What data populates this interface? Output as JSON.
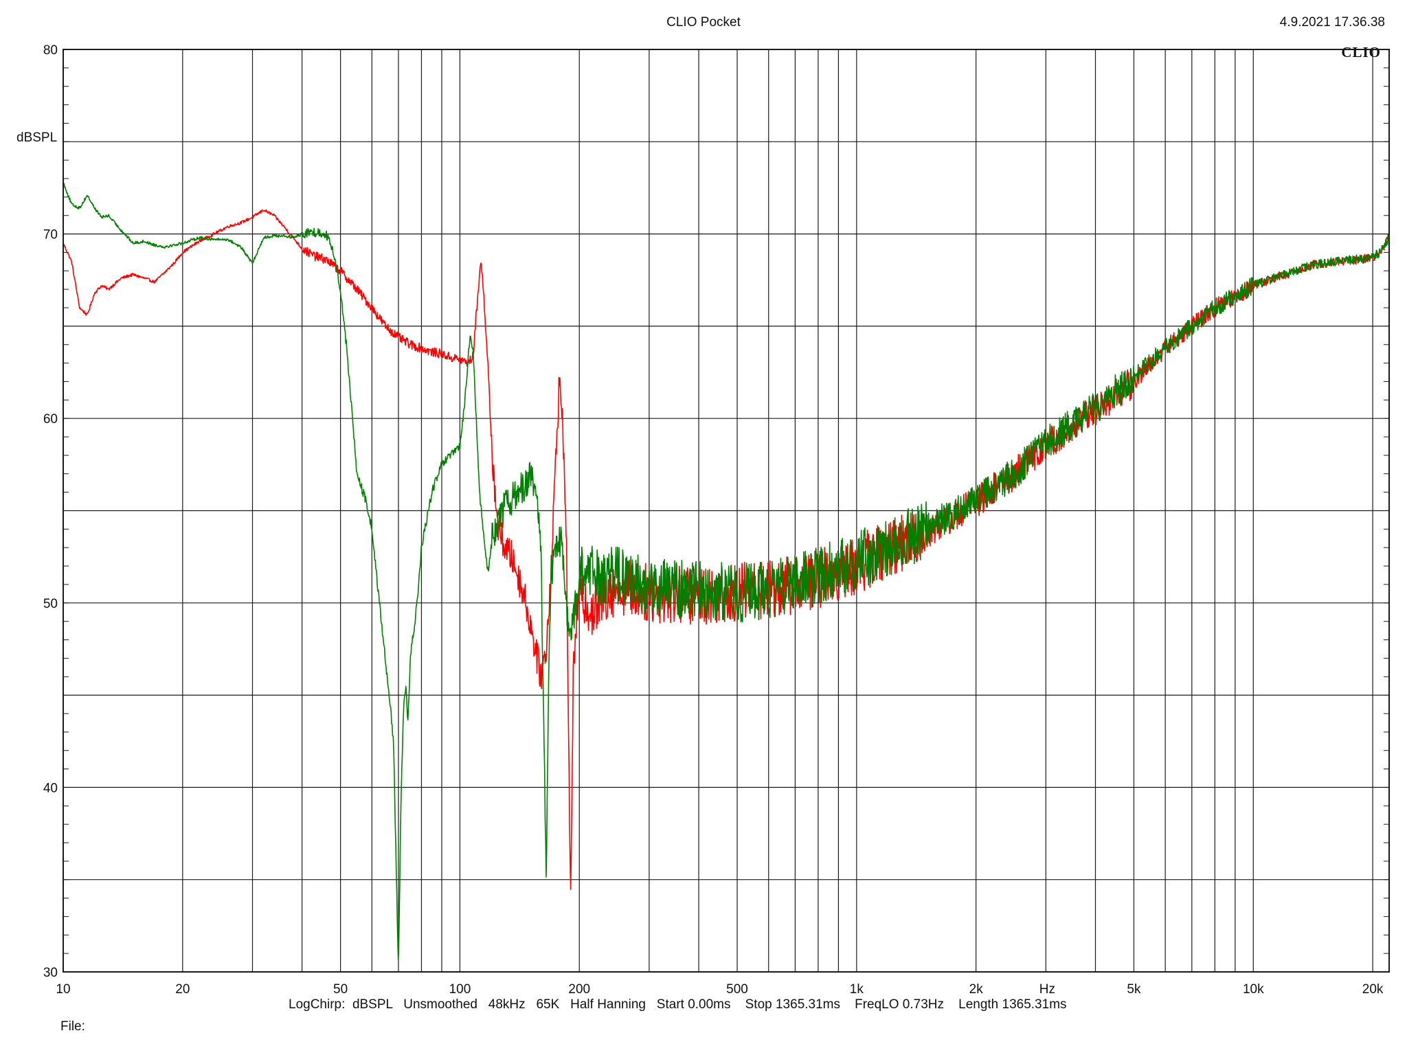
{
  "header": {
    "title": "CLIO Pocket",
    "timestamp": "4.9.2021 17.36.38",
    "brand": "CLIO"
  },
  "footer": {
    "settings": "LogChirp:  dBSPL   Unsmoothed   48kHz   65K   Half Hanning   Start 0.00ms    Stop 1365.31ms    FreqLO 0.73Hz    Length 1365.31ms",
    "file_label": "File:"
  },
  "chart_data": {
    "type": "line",
    "xscale": "log",
    "xlim": [
      10,
      22000
    ],
    "ylim": [
      30,
      80
    ],
    "xlabel": "Hz",
    "ylabel": "dBSPL",
    "grid": true,
    "x_tick_labels": [
      {
        "value": 10,
        "label": "10"
      },
      {
        "value": 20,
        "label": "20"
      },
      {
        "value": 50,
        "label": "50"
      },
      {
        "value": 100,
        "label": "100"
      },
      {
        "value": 200,
        "label": "200"
      },
      {
        "value": 500,
        "label": "500"
      },
      {
        "value": 1000,
        "label": "1k"
      },
      {
        "value": 2000,
        "label": "2k"
      },
      {
        "value": 5000,
        "label": "5k"
      },
      {
        "value": 10000,
        "label": "10k"
      },
      {
        "value": 20000,
        "label": "20k"
      }
    ],
    "y_tick_labels": [
      {
        "value": 80,
        "label": "80"
      },
      {
        "value": 70,
        "label": "70"
      },
      {
        "value": 60,
        "label": "60"
      },
      {
        "value": 50,
        "label": "50"
      },
      {
        "value": 40,
        "label": "40"
      },
      {
        "value": 30,
        "label": "30"
      }
    ],
    "colors": {
      "grid": "#1a1a1a",
      "red": "#ff0000",
      "green": "#008000"
    },
    "series": [
      {
        "color": "#ff0000",
        "x": [
          10,
          10.5,
          11,
          11.5,
          12,
          12.5,
          13,
          14,
          15,
          16,
          17,
          18,
          19,
          20,
          22,
          24,
          26,
          28,
          30,
          32,
          34,
          36,
          38,
          40,
          43,
          46,
          50,
          55,
          60,
          65,
          70,
          75,
          80,
          85,
          90,
          95,
          100,
          105,
          108,
          111,
          113,
          115,
          118,
          120,
          125,
          130,
          135,
          140,
          145,
          150,
          155,
          160,
          165,
          170,
          175,
          178,
          182,
          186,
          190,
          193,
          196,
          200,
          210,
          220,
          230,
          250,
          300,
          400,
          500,
          600,
          700,
          800,
          1000,
          1200,
          1500,
          2000,
          2500,
          3000,
          4000,
          5000,
          6000,
          7000,
          8000,
          10000,
          12000,
          14000,
          16000,
          18000,
          20000,
          21000,
          22000
        ],
        "y": [
          69.5,
          68.5,
          66.0,
          65.6,
          66.8,
          67.2,
          67.0,
          67.6,
          67.8,
          67.6,
          67.4,
          67.9,
          68.4,
          69.0,
          69.6,
          70.0,
          70.4,
          70.6,
          70.9,
          71.3,
          71.0,
          70.4,
          69.8,
          69.2,
          68.8,
          68.6,
          68.0,
          67.0,
          66.0,
          65.0,
          64.4,
          64.0,
          63.8,
          63.6,
          63.5,
          63.3,
          63.2,
          63.0,
          63.4,
          66.8,
          68.6,
          66.5,
          62.5,
          58.5,
          54.0,
          53.0,
          52.5,
          51.5,
          50.5,
          49.0,
          47.5,
          46.0,
          47.5,
          52.0,
          58.5,
          62.0,
          59.5,
          52.0,
          33.2,
          46.0,
          48.5,
          50.5,
          50.0,
          49.5,
          50.5,
          51.0,
          50.5,
          50.4,
          50.6,
          50.7,
          51.0,
          51.3,
          52.0,
          53.0,
          53.8,
          55.5,
          57.0,
          58.5,
          60.5,
          62.0,
          63.8,
          65.0,
          66.0,
          67.2,
          67.8,
          68.3,
          68.5,
          68.6,
          68.7,
          69.0,
          69.9
        ]
      },
      {
        "color": "#008000",
        "x": [
          10,
          10.5,
          11,
          11.5,
          12,
          12.5,
          13,
          14,
          15,
          16,
          17,
          18,
          19,
          20,
          22,
          24,
          26,
          28,
          30,
          32,
          34,
          36,
          38,
          40,
          43,
          46,
          48,
          50,
          52,
          55,
          58,
          60,
          63,
          66,
          68,
          70,
          71,
          72,
          73,
          74,
          75,
          78,
          80,
          85,
          90,
          95,
          100,
          103,
          106,
          108,
          110,
          112,
          115,
          118,
          120,
          125,
          130,
          140,
          150,
          155,
          160,
          165,
          168,
          170,
          175,
          180,
          185,
          190,
          200,
          220,
          250,
          300,
          400,
          500,
          600,
          700,
          800,
          1000,
          1200,
          1500,
          2000,
          2500,
          3000,
          4000,
          5000,
          6000,
          7000,
          8000,
          10000,
          12000,
          14000,
          16000,
          18000,
          20000,
          21000,
          22000
        ],
        "y": [
          72.8,
          71.6,
          71.4,
          72.1,
          71.4,
          70.9,
          71.0,
          70.2,
          69.5,
          69.6,
          69.4,
          69.3,
          69.4,
          69.5,
          69.8,
          69.7,
          69.7,
          69.3,
          68.4,
          69.8,
          69.9,
          69.9,
          69.8,
          70.0,
          70.1,
          70.0,
          69.0,
          67.0,
          63.5,
          57.0,
          55.5,
          54.0,
          49.5,
          45.5,
          42.5,
          30.0,
          39.0,
          44.0,
          45.5,
          43.5,
          47.0,
          50.0,
          53.0,
          56.0,
          57.5,
          58.0,
          58.5,
          61.0,
          64.5,
          63.5,
          60.0,
          56.0,
          53.5,
          51.5,
          53.5,
          54.5,
          55.2,
          56.0,
          56.8,
          56.2,
          53.0,
          35.5,
          48.0,
          51.5,
          53.0,
          53.5,
          50.0,
          48.0,
          51.5,
          51.5,
          51.5,
          50.8,
          50.8,
          50.5,
          50.7,
          51.0,
          51.5,
          52.3,
          53.0,
          54.0,
          55.6,
          57.0,
          58.7,
          60.6,
          62.3,
          63.8,
          65.0,
          66.0,
          67.2,
          67.8,
          68.3,
          68.5,
          68.6,
          68.7,
          69.1,
          69.8
        ]
      }
    ]
  }
}
